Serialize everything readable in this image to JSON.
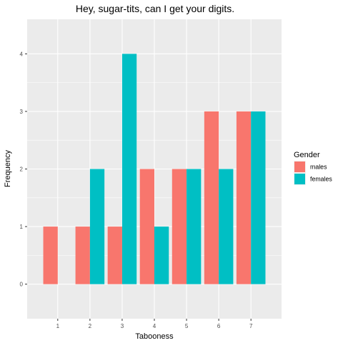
{
  "chart_data": {
    "type": "bar",
    "title": "Hey, sugar-tits, can I get your digits.",
    "xlabel": "Tabooness",
    "ylabel": "Frequency",
    "categories": [
      "1",
      "2",
      "3",
      "4",
      "5",
      "6",
      "7"
    ],
    "x_values": [
      1,
      2,
      3,
      4,
      5,
      6,
      7
    ],
    "xlim": [
      0.05,
      7.95
    ],
    "ylim": [
      -0.6,
      4.6
    ],
    "y_ticks": [
      0,
      1,
      2,
      3,
      4
    ],
    "bar_width": 0.45,
    "grid": true,
    "legend": {
      "title": "Gender",
      "position": "right"
    },
    "series": [
      {
        "name": "males",
        "color": "#F8766D",
        "values": [
          1,
          1,
          1,
          2,
          2,
          3,
          3
        ]
      },
      {
        "name": "females",
        "color": "#00BFC4",
        "values": [
          0,
          2,
          4,
          1,
          2,
          2,
          3
        ]
      }
    ],
    "panel_background": "#EBEBEB",
    "grid_color": "#FFFFFF"
  }
}
